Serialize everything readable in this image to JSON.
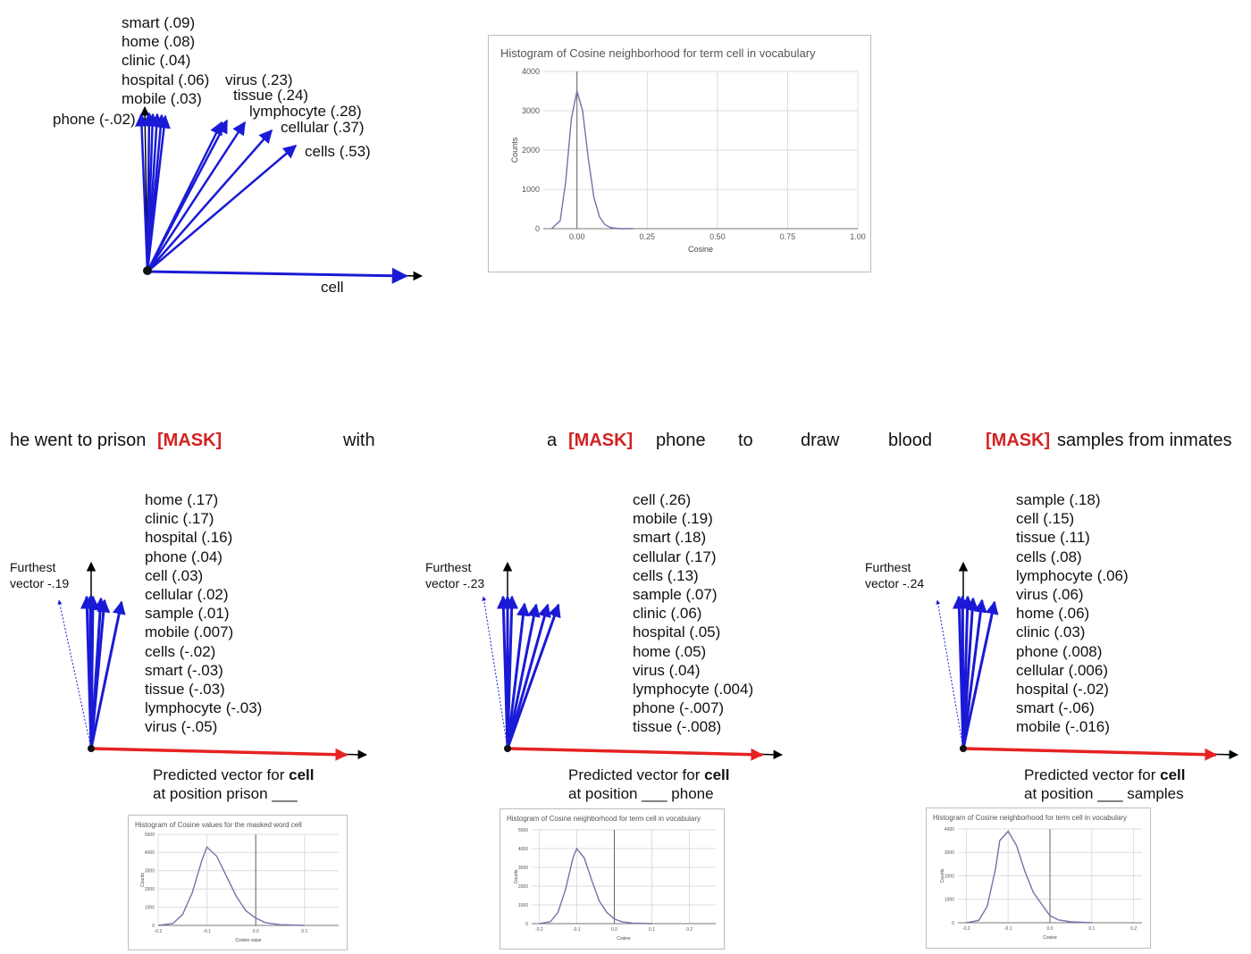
{
  "top_diagram": {
    "axis_label": "cell",
    "neighbors_left": [
      "smart (.09)",
      "home (.08)",
      "clinic (.04)",
      "hospital (.06)",
      "mobile (.03)"
    ],
    "neighbor_phone": "phone (-.02)",
    "neighbors_right": [
      "virus (.23)",
      "tissue (.24)",
      "lymphocyte (.28)",
      "cellular (.37)",
      "cells (.53)"
    ]
  },
  "top_histogram": {
    "title": "Histogram of Cosine neighborhood for term cell in vocabulary",
    "chart_data": {
      "type": "line",
      "xlabel": "Cosine",
      "ylabel": "Counts",
      "xlim": [
        -0.12,
        1.0
      ],
      "ylim": [
        0,
        4000
      ],
      "x_ticks": [
        "0.00",
        "0.25",
        "0.50",
        "0.75",
        "1.00"
      ],
      "y_ticks": [
        "0",
        "1000",
        "2000",
        "3000",
        "4000"
      ],
      "x": [
        -0.09,
        -0.06,
        -0.04,
        -0.02,
        0.0,
        0.02,
        0.04,
        0.06,
        0.08,
        0.1,
        0.12,
        0.15,
        0.2
      ],
      "y": [
        0,
        200,
        1200,
        2800,
        3500,
        3000,
        1800,
        800,
        300,
        100,
        30,
        0,
        0
      ]
    }
  },
  "sentence": {
    "w1": "he went to prison",
    "m1": "[MASK]",
    "w2": "with",
    "w3": "a",
    "m2": "[MASK]",
    "w4": "phone",
    "w5": "to",
    "w6": "draw",
    "w7": "blood",
    "m3": "[MASK]",
    "w8": "samples from inmates"
  },
  "panels": [
    {
      "furthest_line1": "Furthest",
      "furthest_line2": "vector -.19",
      "list": [
        "home (.17)",
        "clinic (.17)",
        "hospital (.16)",
        "phone (.04)",
        "cell (.03)",
        "cellular (.02)",
        "sample (.01)",
        "mobile (.007)",
        "cells (-.02)",
        "smart (-.03)",
        "tissue (-.03)",
        "lymphocyte (-.03)",
        "virus (-.05)"
      ],
      "pred_prefix": "Predicted vector for",
      "pred_word": "cell",
      "pred_line2": "at position prison ___",
      "hist_title": "Histogram of  Cosine values for the masked word cell",
      "chart_data": {
        "type": "line",
        "xlabel": "Cosine value",
        "ylabel": "Counts",
        "xlim": [
          -0.2,
          0.17
        ],
        "ylim": [
          0,
          5000
        ],
        "x_ticks": [
          "-0.2",
          "-0.1",
          "0.0",
          "0.1"
        ],
        "y_ticks": [
          "0",
          "1000",
          "2000",
          "3000",
          "4000",
          "5000"
        ],
        "x": [
          -0.2,
          -0.17,
          -0.15,
          -0.13,
          -0.11,
          -0.1,
          -0.08,
          -0.06,
          -0.04,
          -0.02,
          0.0,
          0.02,
          0.05,
          0.1
        ],
        "y": [
          0,
          100,
          600,
          1800,
          3600,
          4300,
          3800,
          2700,
          1600,
          800,
          400,
          150,
          40,
          0
        ]
      }
    },
    {
      "furthest_line1": "Furthest",
      "furthest_line2": "vector -.23",
      "list": [
        "cell (.26)",
        "mobile (.19)",
        "smart (.18)",
        "cellular (.17)",
        "cells (.13)",
        "sample (.07)",
        "clinic (.06)",
        "hospital (.05)",
        "home (.05)",
        "virus (.04)",
        "lymphocyte (.004)",
        "phone (-.007)",
        "tissue (-.008)"
      ],
      "pred_prefix": "Predicted vector for",
      "pred_word": "cell",
      "pred_line2": "at position ___ phone",
      "hist_title": "Histogram of Cosine neighborhood for term cell in vocabulary",
      "chart_data": {
        "type": "line",
        "xlabel": "Cosine",
        "ylabel": "Counts",
        "xlim": [
          -0.22,
          0.27
        ],
        "ylim": [
          0,
          5000
        ],
        "x_ticks": [
          "-0.2",
          "-0.1",
          "0.0",
          "0.1",
          "0.2"
        ],
        "y_ticks": [
          "0",
          "1000",
          "2000",
          "3000",
          "4000",
          "5000"
        ],
        "x": [
          -0.2,
          -0.17,
          -0.15,
          -0.13,
          -0.11,
          -0.1,
          -0.08,
          -0.06,
          -0.04,
          -0.02,
          0.0,
          0.02,
          0.05,
          0.1
        ],
        "y": [
          0,
          100,
          600,
          1800,
          3500,
          4000,
          3500,
          2300,
          1200,
          600,
          250,
          100,
          30,
          0
        ]
      }
    },
    {
      "furthest_line1": "Furthest",
      "furthest_line2": "vector -.24",
      "list": [
        "sample (.18)",
        "cell (.15)",
        "tissue (.11)",
        "cells (.08)",
        "lymphocyte (.06)",
        "virus (.06)",
        "home (.06)",
        "clinic (.03)",
        "phone (.008)",
        "cellular (.006)",
        "hospital (-.02)",
        "smart (-.06)",
        "mobile (-.016)"
      ],
      "pred_prefix": "Predicted vector for",
      "pred_word": "cell",
      "pred_line2": "at position ___ samples",
      "hist_title": "Histogram of Cosine neighborhood for term cell in vocabulary",
      "chart_data": {
        "type": "line",
        "xlabel": "Cosine",
        "ylabel": "Counts",
        "xlim": [
          -0.22,
          0.22
        ],
        "ylim": [
          0,
          4000
        ],
        "x_ticks": [
          "-0.2",
          "-0.1",
          "0.0",
          "0.1",
          "0.2"
        ],
        "y_ticks": [
          "0",
          "1000",
          "2000",
          "3000",
          "4000"
        ],
        "x": [
          -0.2,
          -0.17,
          -0.15,
          -0.13,
          -0.12,
          -0.1,
          -0.08,
          -0.06,
          -0.04,
          -0.02,
          0.0,
          0.02,
          0.05,
          0.1
        ],
        "y": [
          0,
          100,
          700,
          2300,
          3500,
          3900,
          3300,
          2200,
          1300,
          800,
          300,
          120,
          40,
          0
        ]
      }
    }
  ]
}
